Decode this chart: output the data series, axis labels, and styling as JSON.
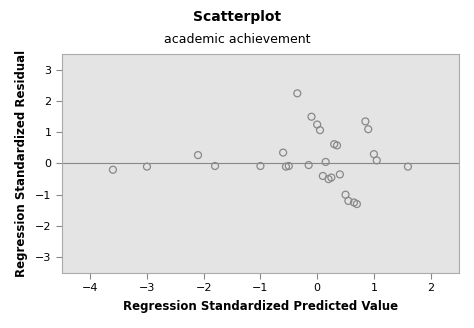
{
  "title": "Scatterplot",
  "subtitle": "academic achievement",
  "xlabel": "Regression Standardized Predicted Value",
  "ylabel": "Regression Standardized Residual",
  "xlim": [
    -4.5,
    2.5
  ],
  "ylim": [
    -3.5,
    3.5
  ],
  "xticks": [
    -4,
    -3,
    -2,
    -1,
    0,
    1,
    2
  ],
  "yticks": [
    -3,
    -2,
    -1,
    0,
    1,
    2,
    3
  ],
  "x_data": [
    -3.6,
    -3.0,
    -2.1,
    -1.8,
    -1.0,
    -0.6,
    -0.55,
    -0.5,
    -0.35,
    -0.15,
    -0.1,
    0.0,
    0.05,
    0.1,
    0.15,
    0.2,
    0.25,
    0.3,
    0.35,
    0.4,
    0.5,
    0.55,
    0.65,
    0.7,
    0.85,
    0.9,
    1.0,
    1.05,
    1.6
  ],
  "y_data": [
    -0.2,
    -0.1,
    0.27,
    -0.08,
    -0.08,
    0.35,
    -0.1,
    -0.08,
    2.25,
    -0.05,
    1.5,
    1.25,
    1.07,
    -0.4,
    0.05,
    -0.5,
    -0.45,
    0.62,
    0.58,
    -0.35,
    -1.0,
    -1.2,
    -1.25,
    -1.3,
    1.35,
    1.1,
    0.3,
    0.1,
    -0.1
  ],
  "marker_facecolor": "none",
  "marker_edge_color": "#888888",
  "marker_size": 5,
  "figure_bg": "#ffffff",
  "axes_bg": "#e4e4e4",
  "hline_color": "#888888",
  "hline_y": 0,
  "title_fontsize": 10,
  "subtitle_fontsize": 9,
  "label_fontsize": 8.5,
  "tick_fontsize": 8,
  "spine_color": "#aaaaaa"
}
